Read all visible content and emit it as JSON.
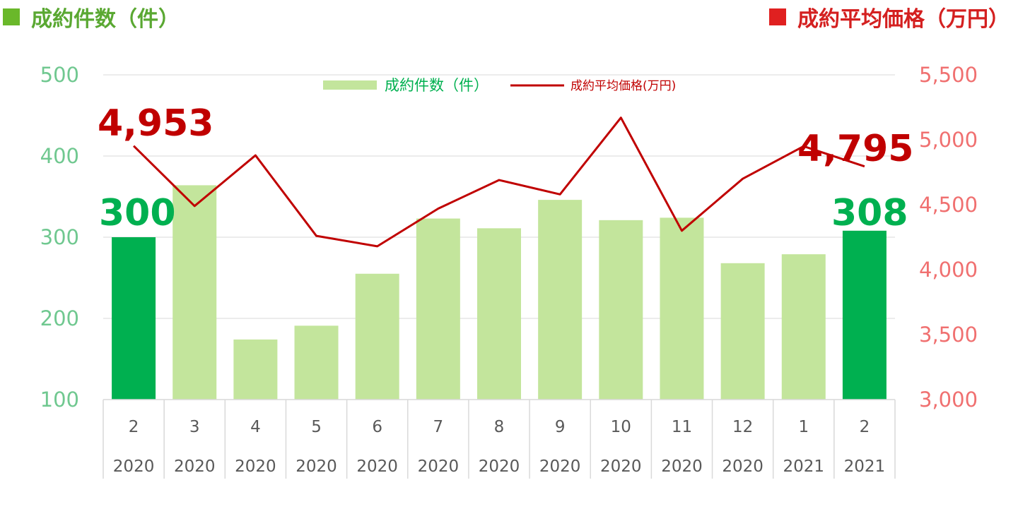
{
  "header": {
    "left_title": "成約件数（件）",
    "right_title": "成約平均価格（万円）"
  },
  "colors": {
    "bar_light": "#c3e59c",
    "bar_highlight": "#00b050",
    "line": "#c00000",
    "left_axis_text": "#70c890",
    "right_axis_text": "#f07070",
    "left_header": "#5aa832",
    "right_header": "#d42020",
    "left_square": "#6ab82a",
    "right_square": "#e02020"
  },
  "chart_data": {
    "type": "bar",
    "categories": [
      "2",
      "3",
      "4",
      "5",
      "6",
      "7",
      "8",
      "9",
      "10",
      "11",
      "12",
      "1",
      "2"
    ],
    "years": [
      "2020",
      "2020",
      "2020",
      "2020",
      "2020",
      "2020",
      "2020",
      "2020",
      "2020",
      "2020",
      "2020",
      "2021",
      "2021"
    ],
    "series": [
      {
        "name": "成約件数（件）",
        "type": "bar",
        "axis": "left",
        "values": [
          300,
          364,
          174,
          191,
          255,
          323,
          311,
          346,
          321,
          324,
          268,
          279,
          308
        ],
        "highlight": [
          true,
          false,
          false,
          false,
          false,
          false,
          false,
          false,
          false,
          false,
          false,
          false,
          true
        ]
      },
      {
        "name": "成約平均価格(万円)",
        "type": "line",
        "axis": "right",
        "values": [
          4953,
          4490,
          4880,
          4260,
          4180,
          4470,
          4690,
          4580,
          5170,
          4300,
          4700,
          4950,
          4795
        ]
      }
    ],
    "left_axis": {
      "min": 100,
      "max": 500,
      "ticks": [
        "100",
        "200",
        "300",
        "400",
        "500"
      ]
    },
    "right_axis": {
      "min": 3000,
      "max": 5500,
      "ticks": [
        "3,000",
        "3,500",
        "4,000",
        "4,500",
        "5,000",
        "5,500"
      ]
    },
    "callouts": {
      "first_count": "300",
      "last_count": "308",
      "first_price": "4,953",
      "last_price": "4,795"
    },
    "legend_position": "top",
    "grid": true
  }
}
